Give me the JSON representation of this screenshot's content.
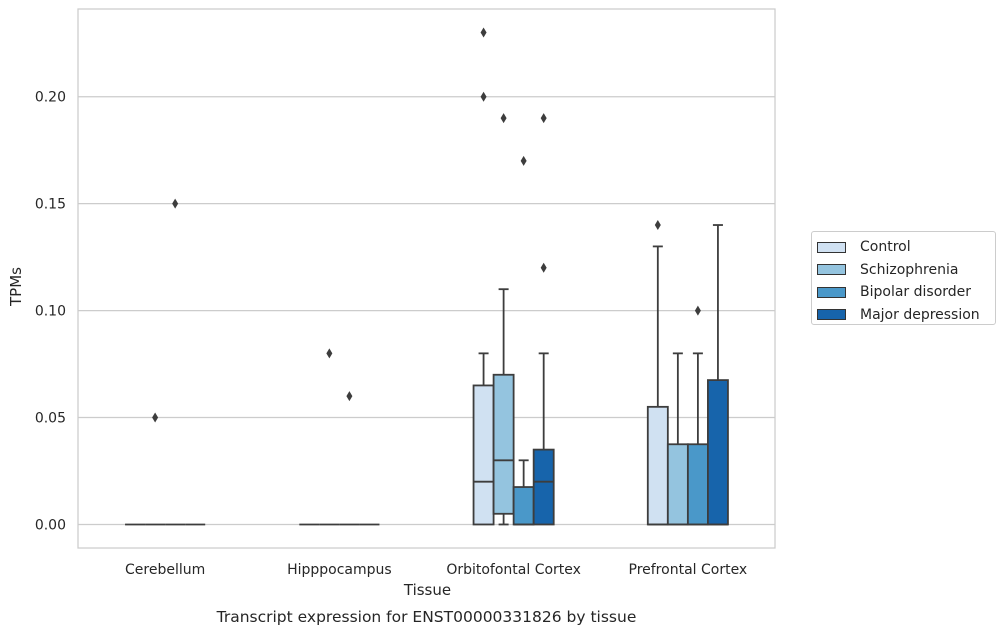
{
  "chart_data": {
    "type": "box",
    "title": "Transcript expression for ENST00000331826 by tissue",
    "xlabel": "Tissue",
    "ylabel": "TPMs",
    "ylim": [
      -0.011,
      0.241
    ],
    "yticks": [
      0.0,
      0.05,
      0.1,
      0.15,
      0.2
    ],
    "ytick_labels": [
      "0.00",
      "0.05",
      "0.10",
      "0.15",
      "0.20"
    ],
    "grid": "horizontal",
    "legend_position": "right",
    "categories": [
      "Cerebellum",
      "Hipppocampus",
      "Orbitofontal Cortex",
      "Prefrontal Cortex"
    ],
    "series": [
      {
        "name": "Control",
        "color": "#d0e1f2",
        "boxes": [
          {
            "whislo": 0,
            "q1": 0,
            "med": 0,
            "q3": 0,
            "whishi": 0,
            "fliers": []
          },
          {
            "whislo": 0,
            "q1": 0,
            "med": 0,
            "q3": 0,
            "whishi": 0,
            "fliers": []
          },
          {
            "whislo": 0,
            "q1": 0,
            "med": 0.02,
            "q3": 0.065,
            "whishi": 0.08,
            "fliers": [
              0.2,
              0.23
            ]
          },
          {
            "whislo": 0,
            "q1": 0,
            "med": 0,
            "q3": 0.055,
            "whishi": 0.13,
            "fliers": [
              0.14
            ]
          }
        ]
      },
      {
        "name": "Schizophrenia",
        "color": "#94c4df",
        "boxes": [
          {
            "whislo": 0,
            "q1": 0,
            "med": 0,
            "q3": 0,
            "whishi": 0,
            "fliers": [
              0.05
            ]
          },
          {
            "whislo": 0,
            "q1": 0,
            "med": 0,
            "q3": 0,
            "whishi": 0,
            "fliers": [
              0.08
            ]
          },
          {
            "whislo": 0,
            "q1": 0.005,
            "med": 0.03,
            "q3": 0.07,
            "whishi": 0.11,
            "fliers": [
              0.19
            ]
          },
          {
            "whislo": 0,
            "q1": 0,
            "med": 0,
            "q3": 0.0375,
            "whishi": 0.08,
            "fliers": []
          }
        ]
      },
      {
        "name": "Bipolar disorder",
        "color": "#4a98c9",
        "boxes": [
          {
            "whislo": 0,
            "q1": 0,
            "med": 0,
            "q3": 0,
            "whishi": 0,
            "fliers": [
              0.15
            ]
          },
          {
            "whislo": 0,
            "q1": 0,
            "med": 0,
            "q3": 0,
            "whishi": 0,
            "fliers": [
              0.06
            ]
          },
          {
            "whislo": 0,
            "q1": 0,
            "med": 0,
            "q3": 0.0175,
            "whishi": 0.03,
            "fliers": [
              0.17
            ]
          },
          {
            "whislo": 0,
            "q1": 0,
            "med": 0,
            "q3": 0.0375,
            "whishi": 0.08,
            "fliers": [
              0.1
            ]
          }
        ]
      },
      {
        "name": "Major depression",
        "color": "#1764ab",
        "boxes": [
          {
            "whislo": 0,
            "q1": 0,
            "med": 0,
            "q3": 0,
            "whishi": 0,
            "fliers": []
          },
          {
            "whislo": 0,
            "q1": 0,
            "med": 0,
            "q3": 0,
            "whishi": 0,
            "fliers": []
          },
          {
            "whislo": 0,
            "q1": 0,
            "med": 0.02,
            "q3": 0.035,
            "whishi": 0.08,
            "fliers": [
              0.12,
              0.19
            ]
          },
          {
            "whislo": 0,
            "q1": 0,
            "med": 0,
            "q3": 0.0675,
            "whishi": 0.14,
            "fliers": []
          }
        ]
      }
    ]
  }
}
